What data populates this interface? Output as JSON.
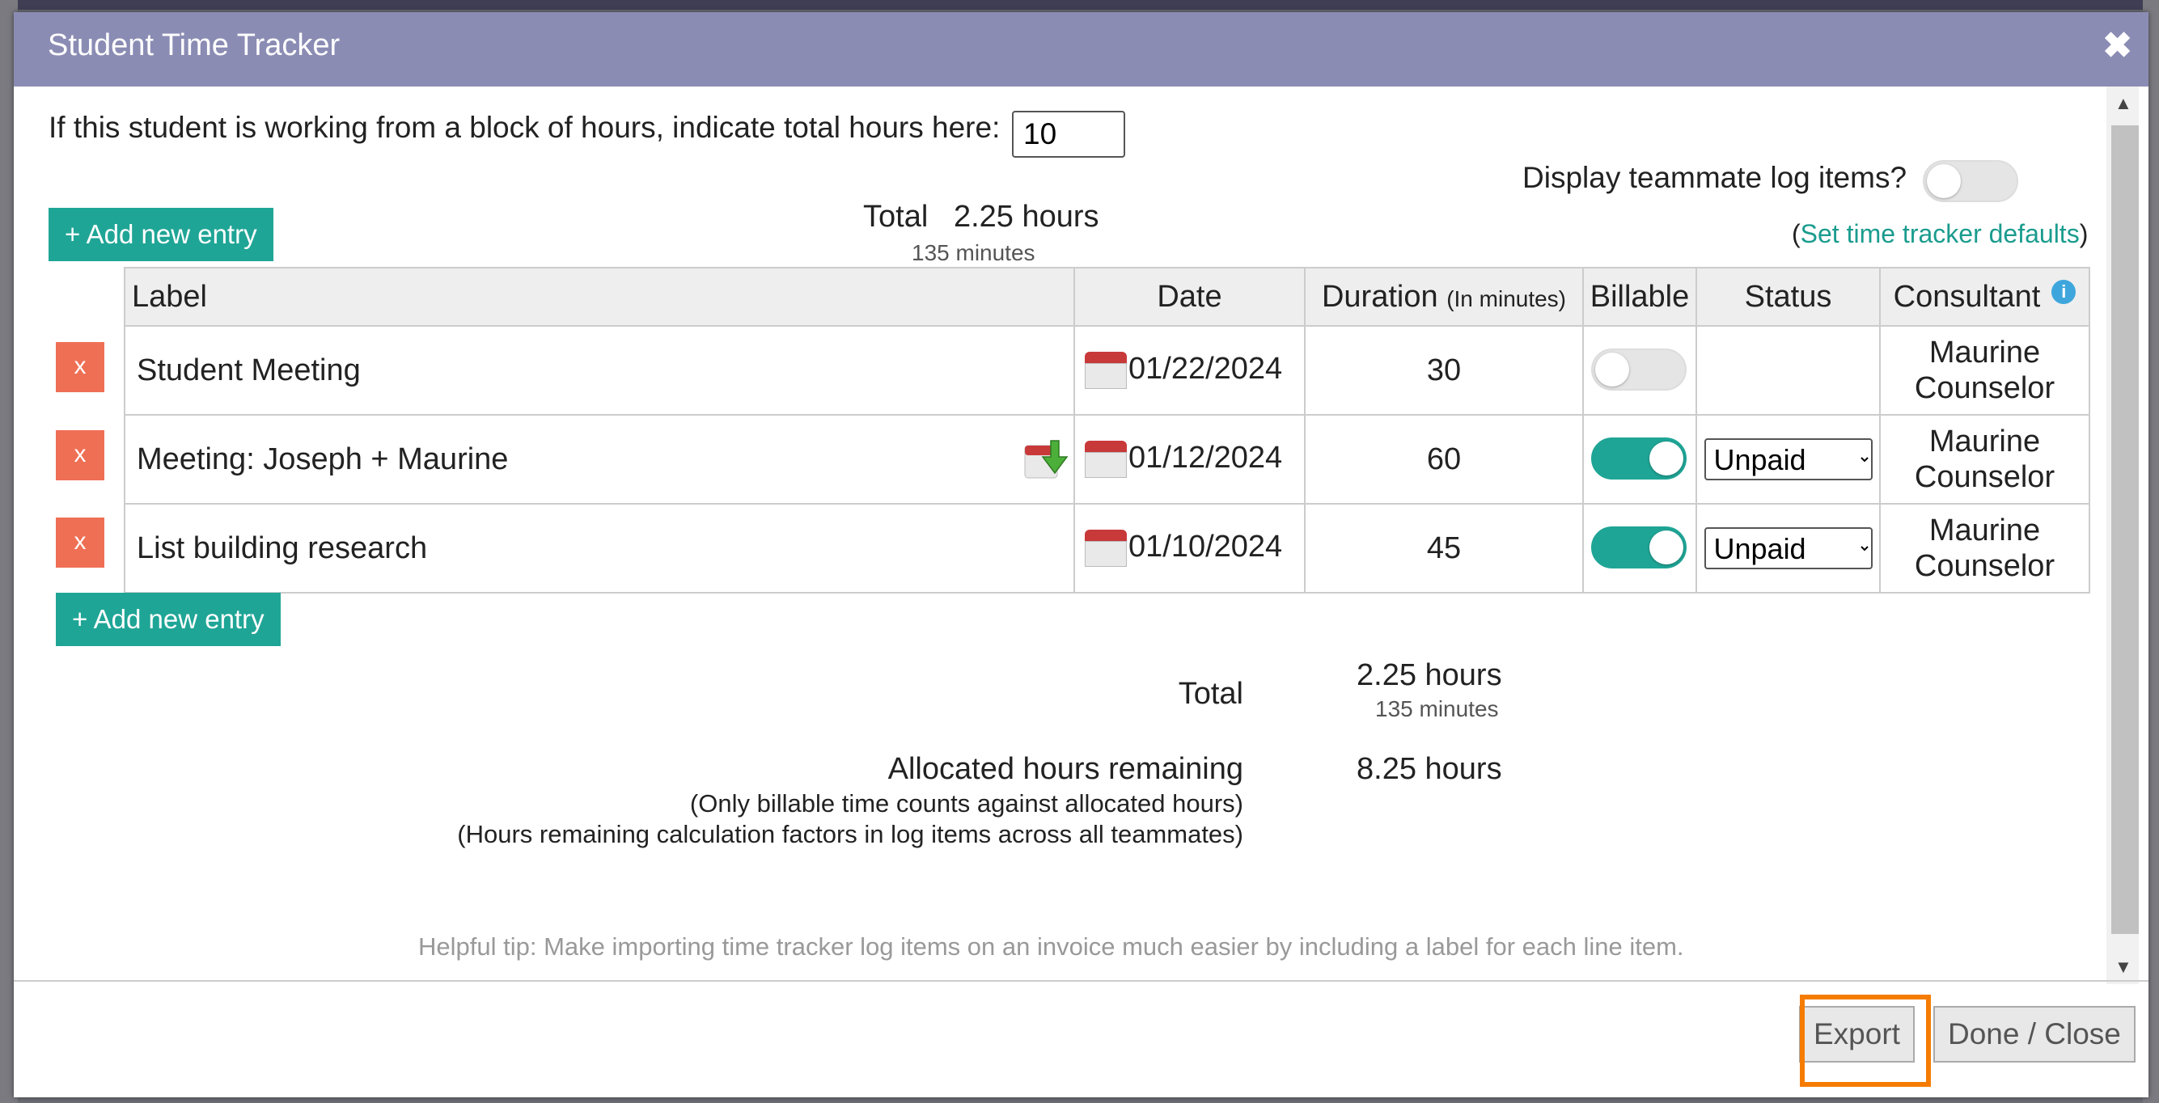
{
  "dialog": {
    "title": "Student Time Tracker",
    "close_icon": "close-icon"
  },
  "block": {
    "label": "If this student is working from a block of hours, indicate total hours here:",
    "value": "10"
  },
  "teammate": {
    "label": "Display teammate log items?",
    "enabled": false
  },
  "defaults": {
    "open": "(",
    "link": "Set time tracker defaults",
    "close": ")"
  },
  "add_entry_label": "+ Add new entry",
  "top_total": {
    "label": "Total",
    "hours": "2.25 hours",
    "minutes": "135 minutes"
  },
  "table": {
    "headers": {
      "label": "Label",
      "date": "Date",
      "duration": "Duration",
      "duration_sub": "(In minutes)",
      "billable": "Billable",
      "status": "Status",
      "consultant": "Consultant"
    },
    "rows": [
      {
        "delete": "x",
        "label": "Student Meeting",
        "date": "01/22/2024",
        "duration": "30",
        "billable": false,
        "status": "",
        "consultant_first": "Maurine",
        "consultant_last": "Counselor"
      },
      {
        "delete": "x",
        "label": "Meeting: Joseph + Maurine",
        "date": "01/12/2024",
        "duration": "60",
        "billable": true,
        "status": "Unpaid",
        "consultant_first": "Maurine",
        "consultant_last": "Counselor"
      },
      {
        "delete": "x",
        "label": "List building research",
        "date": "01/10/2024",
        "duration": "45",
        "billable": true,
        "status": "Unpaid",
        "consultant_first": "Maurine",
        "consultant_last": "Counselor"
      }
    ]
  },
  "summary": {
    "total_label": "Total",
    "total_hours": "2.25 hours",
    "total_minutes": "135 minutes",
    "remaining_label": "Allocated hours remaining",
    "remaining_hours": "8.25 hours",
    "note1": "(Only billable time counts against allocated hours)",
    "note2": "(Hours remaining calculation factors in log items across all teammates)"
  },
  "tip": "Helpful tip: Make importing time tracker log items on an invoice much easier by including a label for each line item.",
  "footer": {
    "export_label": "Export",
    "done_label": "Done / Close"
  },
  "colors": {
    "titlebar": "#8b8cb4",
    "accent": "#1fa596",
    "delete": "#ef6f55",
    "highlight": "#f57c00"
  }
}
